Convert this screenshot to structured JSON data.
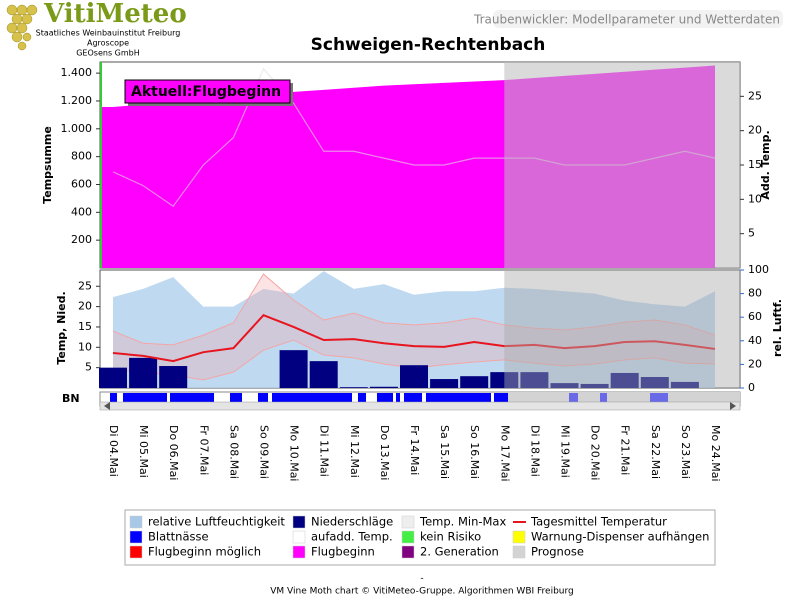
{
  "header": {
    "logo": "VitiMeteo",
    "org": [
      "Staatliches Weinbauinstitut Freiburg",
      "Agroscope",
      "GEOsens GmbH"
    ],
    "caption": "Traubenwickler: Modellparameter und Wetterdaten"
  },
  "chart_data": [
    {
      "type": "area",
      "title": "Schweigen-Rechtenbach",
      "annotation": "Aktuell:Flugbeginn",
      "ylabel": "Tempsumme",
      "y2label": "Add. Temp.",
      "ylim": [
        0,
        1480
      ],
      "yticks": [
        200,
        400,
        600,
        800,
        {
          "value": 1000,
          "label": "1.000"
        },
        {
          "value": 1200,
          "label": "1.200"
        },
        {
          "value": 1400,
          "label": "1.400"
        }
      ],
      "y2lim": [
        0,
        30
      ],
      "y2ticks": [
        5,
        10,
        15,
        20,
        25
      ],
      "forecast_start": 13,
      "series": [
        {
          "color": "#ff00ff",
          "values": [
            1157,
            1175,
            1190,
            1205,
            1225,
            1250,
            1265,
            1280,
            1295,
            1310,
            1320,
            1330,
            1340,
            1350,
            1365,
            1380,
            1395,
            1410,
            1425,
            1440,
            1455
          ]
        },
        {
          "color": "#dddddd",
          "axis": "y2",
          "values": [
            14,
            12,
            9,
            15,
            19,
            29,
            24,
            17,
            17,
            16,
            15,
            15,
            16,
            16,
            16,
            15,
            15,
            15,
            16,
            17,
            16
          ]
        }
      ]
    },
    {
      "type": "combo",
      "ylabel": "Temp, Nied.",
      "y2label": "rel. Luftf.",
      "strip_label": "BN",
      "ylim": [
        0,
        29
      ],
      "yticks": [
        5,
        10,
        15,
        20,
        25
      ],
      "y2lim": [
        0,
        100
      ],
      "y2ticks": [
        0,
        20,
        40,
        60,
        80,
        100
      ],
      "forecast_start": 13,
      "categories": [
        "Di 04.Mai",
        "Mi 05.Mai",
        "Do 06.Mai",
        "Fr 07.Mai",
        "Sa 08.Mai",
        "So 09.Mai",
        "Mo 10.Mai",
        "Di 11.Mai",
        "Mi 12.Mai",
        "Do 13.Mai",
        "Fr 14.Mai",
        "Sa 15.Mai",
        "So 16.Mai",
        "Mo 17.Mai",
        "Di 18.Mai",
        "Mi 19.Mai",
        "Do 20.Mai",
        "Fr 21.Mai",
        "Sa 22.Mai",
        "So 23.Mai",
        "Mo 24.Mai"
      ],
      "series": [
        {
          "kind": "area",
          "axis": "y2",
          "color": "#b4d2ee",
          "values": [
            77,
            84,
            94,
            69,
            69,
            84,
            80,
            99,
            84,
            88,
            79,
            82,
            82,
            85,
            84,
            82,
            80,
            74,
            71,
            69,
            82
          ]
        },
        {
          "kind": "band",
          "color": "#f4a6a6",
          "values": [
            14,
            11,
            10.6,
            13,
            16,
            28,
            21.6,
            16.7,
            18.4,
            16,
            15.5,
            16,
            17.2,
            15.5,
            14.7,
            14.3,
            15,
            16.2,
            16.7,
            15.5,
            13
          ],
          "low": [
            4.4,
            3.9,
            3.2,
            2,
            3.9,
            9.3,
            11.8,
            8.1,
            7.4,
            5.9,
            4.9,
            5.7,
            6.4,
            6.9,
            6.1,
            5.4,
            5.9,
            6.9,
            7.4,
            6.1,
            5.9
          ]
        },
        {
          "kind": "bar",
          "color": "#000080",
          "values": [
            5,
            7.4,
            5.4,
            0,
            0,
            0,
            9.3,
            6.6,
            0.2,
            0.3,
            5.6,
            2.2,
            2.9,
            3.9,
            3.9,
            1.2,
            1,
            3.7,
            2.7,
            1.5,
            0
          ]
        },
        {
          "kind": "line",
          "color": "#e8141e",
          "values": [
            8.6,
            7.9,
            6.6,
            8.8,
            9.8,
            17.9,
            15,
            11.8,
            12,
            11,
            10.3,
            10.1,
            11.3,
            10.3,
            10.6,
            9.8,
            10.3,
            11.3,
            11.5,
            10.6,
            9.6
          ]
        }
      ]
    }
  ],
  "legend": [
    {
      "label": "relative Luftfeuchtigkeit",
      "color": "#a8c8e8"
    },
    {
      "label": "Niederschläge",
      "color": "#000080"
    },
    {
      "label": "Temp. Min-Max",
      "color": "#eeeeee"
    },
    {
      "label": "Tagesmittel Temperatur",
      "color": "#e8141e",
      "style": "line"
    },
    {
      "label": "Blattnässe",
      "color": "#0000ff"
    },
    {
      "label": "aufadd. Temp.",
      "color": "#ffffff"
    },
    {
      "label": "kein Risiko",
      "color": "#44ee44"
    },
    {
      "label": "Warnung-Dispenser aufhängen",
      "color": "#ffff00"
    },
    {
      "label": "Flugbeginn möglich",
      "color": "#ff0000"
    },
    {
      "label": "Flugbeginn",
      "color": "#ff00ff"
    },
    {
      "label": "2. Generation",
      "color": "#800080"
    },
    {
      "label": "Prognose",
      "color": "#d3d3d3"
    }
  ],
  "footer": {
    "dash": "-",
    "credit": "VM Vine Moth chart © VitiMeteo-Gruppe. Algorithmen WBI Freiburg"
  }
}
